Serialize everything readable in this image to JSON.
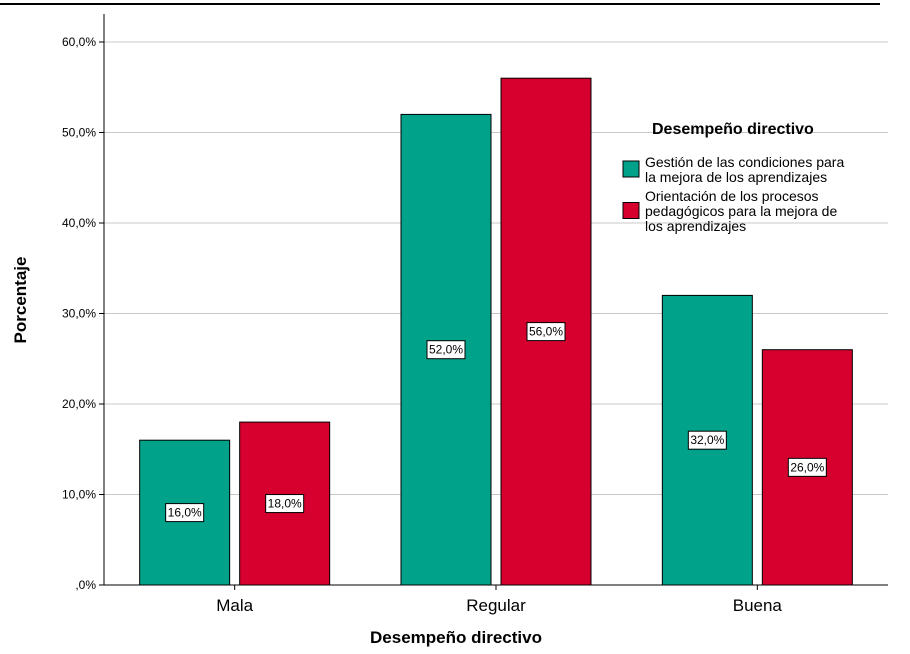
{
  "chart_data": {
    "type": "bar",
    "title": "",
    "xlabel": "Desempeño directivo",
    "ylabel": "Porcentaje",
    "categories": [
      "Mala",
      "Regular",
      "Buena"
    ],
    "series": [
      {
        "name": "Gestión de las condiciones para la mejora de los aprendizajes",
        "legend_lines": [
          "Gestión de las condiciones para",
          "la mejora de los aprendizajes"
        ],
        "color": "#00A38A",
        "values": [
          16.0,
          52.0,
          32.0
        ],
        "labels": [
          "16,0%",
          "52,0%",
          "32,0%"
        ]
      },
      {
        "name": "Orientación de los procesos pedagógicos para la mejora de los aprendizajes",
        "legend_lines": [
          "Orientación de los procesos",
          "pedagógicos para la mejora de",
          "los aprendizajes"
        ],
        "color": "#D6002F",
        "values": [
          18.0,
          56.0,
          26.0
        ],
        "labels": [
          "18,0%",
          "56,0%",
          "26,0%"
        ]
      }
    ],
    "ylim": [
      0,
      60
    ],
    "yticks": [
      0,
      10,
      20,
      30,
      40,
      50,
      60
    ],
    "ytick_labels": [
      ",0%",
      "10,0%",
      "20,0%",
      "30,0%",
      "40,0%",
      "50,0%",
      "60,0%"
    ],
    "legend": {
      "title": "Desempeño directivo",
      "position": "right"
    },
    "grid": true
  }
}
